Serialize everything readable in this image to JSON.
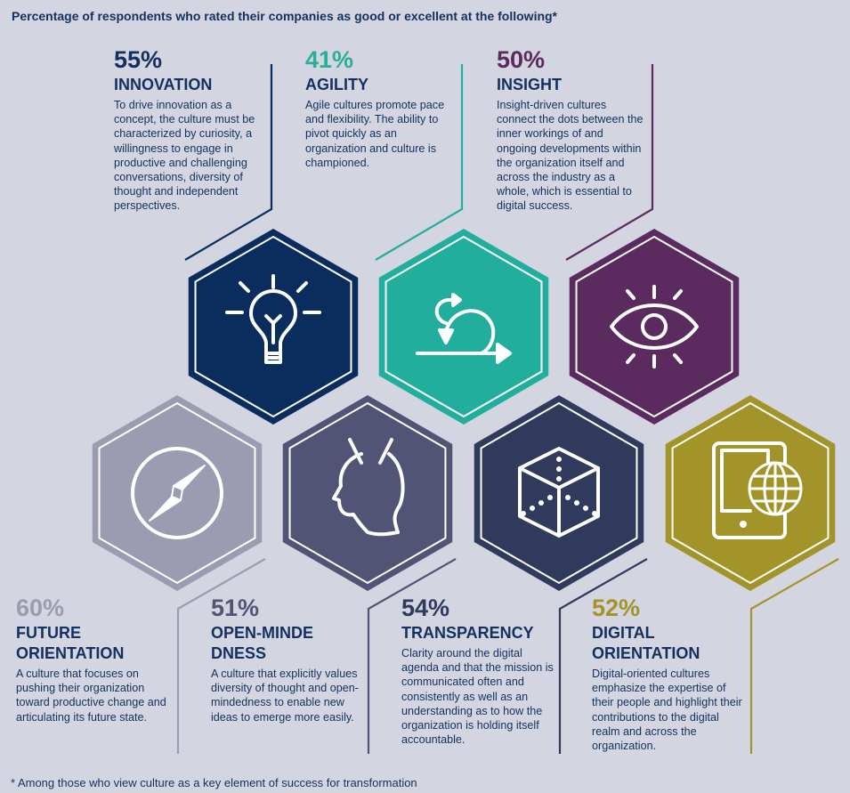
{
  "heading": "Percentage of respondents who rated their companies as good or excellent at the following*",
  "footnote": "* Among those who view culture as a key element of success for transformation",
  "background": "#d3d6e0",
  "items": [
    {
      "id": "innovation",
      "percent": "55%",
      "value": 55,
      "title": "INNOVATION",
      "description": "To drive innovation as a concept, the culture must be characterized by curiosity, a willingness to engage in productive and challenging conversations, diversity of thought and independent perspectives.",
      "color": "#0b2d5e",
      "percent_color": "#14305e",
      "icon": "lightbulb-icon"
    },
    {
      "id": "agility",
      "percent": "41%",
      "value": 41,
      "title": "AGILITY",
      "description": "Agile cultures promote pace and flexibility. The ability to pivot quickly as an organization and culture is championed.",
      "color": "#22ae9d",
      "percent_color": "#2bae98",
      "icon": "agile-loop-arrow-icon"
    },
    {
      "id": "insight",
      "percent": "50%",
      "value": 50,
      "title": "INSIGHT",
      "description": "Insight-driven cultures connect the dots between the inner workings of and ongoing developments within the organization itself and across the industry as a whole, which is essential to digital success.",
      "color": "#5b2a5e",
      "percent_color": "#5b2a5e",
      "icon": "eye-icon"
    },
    {
      "id": "future",
      "percent": "60%",
      "value": 60,
      "title": "FUTURE ORIENTATION",
      "description": "A culture that focuses on pushing their organization toward productive change and articulating its future state.",
      "color": "#9b9bb1",
      "percent_color": "#9b9bb1",
      "icon": "compass-icon"
    },
    {
      "id": "open",
      "percent": "51%",
      "value": 51,
      "title": "OPEN-MINDEDNESS",
      "description": "A culture that explicitly values diversity of thought and open-mindedness to enable new ideas to emerge more easily.",
      "color": "#525475",
      "percent_color": "#525475",
      "icon": "open-head-icon"
    },
    {
      "id": "transparency",
      "percent": "54%",
      "value": 54,
      "title": "TRANSPARENCY",
      "description": "Clarity around the digital agenda and that the mission is communicated often and consistently as well as an understanding as to how the organization is holding itself accountable.",
      "color": "#2f3a5d",
      "percent_color": "#2f3a5d",
      "icon": "transparent-cube-icon"
    },
    {
      "id": "digital",
      "percent": "52%",
      "value": 52,
      "title": "DIGITAL ORIENTATION",
      "description": "Digital-oriented cultures emphasize the expertise of their people and highlight their contributions to the digital realm and across the organization.",
      "color": "#a29428",
      "percent_color": "#a29428",
      "icon": "tablet-globe-icon"
    }
  ]
}
